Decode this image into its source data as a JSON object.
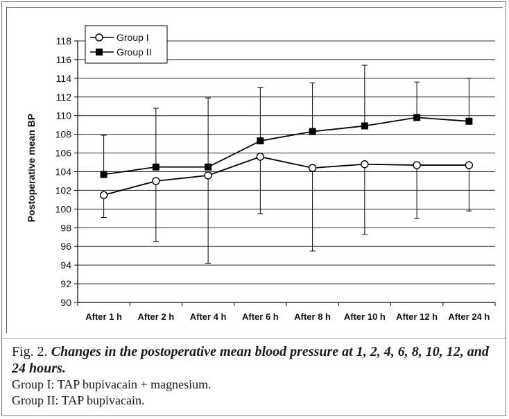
{
  "chart_data": {
    "type": "line",
    "categories": [
      "After 1 h",
      "After 2 h",
      "After 4 h",
      "After 6 h",
      "After 8 h",
      "After 10 h",
      "After 12 h",
      "After 24 h"
    ],
    "ylabel": "Postoperative mean BP",
    "xlabel": "",
    "ylim": [
      90,
      118
    ],
    "yticks": [
      90,
      92,
      94,
      96,
      98,
      100,
      102,
      104,
      106,
      108,
      110,
      112,
      114,
      116,
      118
    ],
    "grid": true,
    "legend_position": "top-left",
    "series": [
      {
        "name": "Group I",
        "marker": "open-circle",
        "color": "#000000",
        "values": [
          101.5,
          103.0,
          103.6,
          105.6,
          104.4,
          104.8,
          104.7,
          104.7
        ],
        "error_lower": [
          99.1,
          96.5,
          94.2,
          99.5,
          95.5,
          97.3,
          99.0,
          99.8
        ],
        "error_upper": [
          101.5,
          103.0,
          103.6,
          105.6,
          104.4,
          104.8,
          104.7,
          104.7
        ]
      },
      {
        "name": "Group II",
        "marker": "filled-square",
        "color": "#000000",
        "values": [
          103.7,
          104.5,
          104.5,
          107.3,
          108.3,
          108.9,
          109.8,
          109.4
        ],
        "error_lower": [
          103.7,
          104.5,
          104.5,
          107.3,
          108.3,
          108.9,
          109.8,
          109.4
        ],
        "error_upper": [
          107.9,
          110.8,
          111.9,
          113.0,
          113.5,
          115.4,
          113.6,
          114.0
        ]
      }
    ]
  },
  "caption": {
    "lead": "Fig. 2.",
    "title": "Changes in the postoperative mean blood pressure at 1, 2, 4, 6, 8, 10, 12, and 24 hours",
    "lines": [
      "Group I: TAP bupivacain + magnesium.",
      "Group II: TAP bupivacain."
    ]
  }
}
